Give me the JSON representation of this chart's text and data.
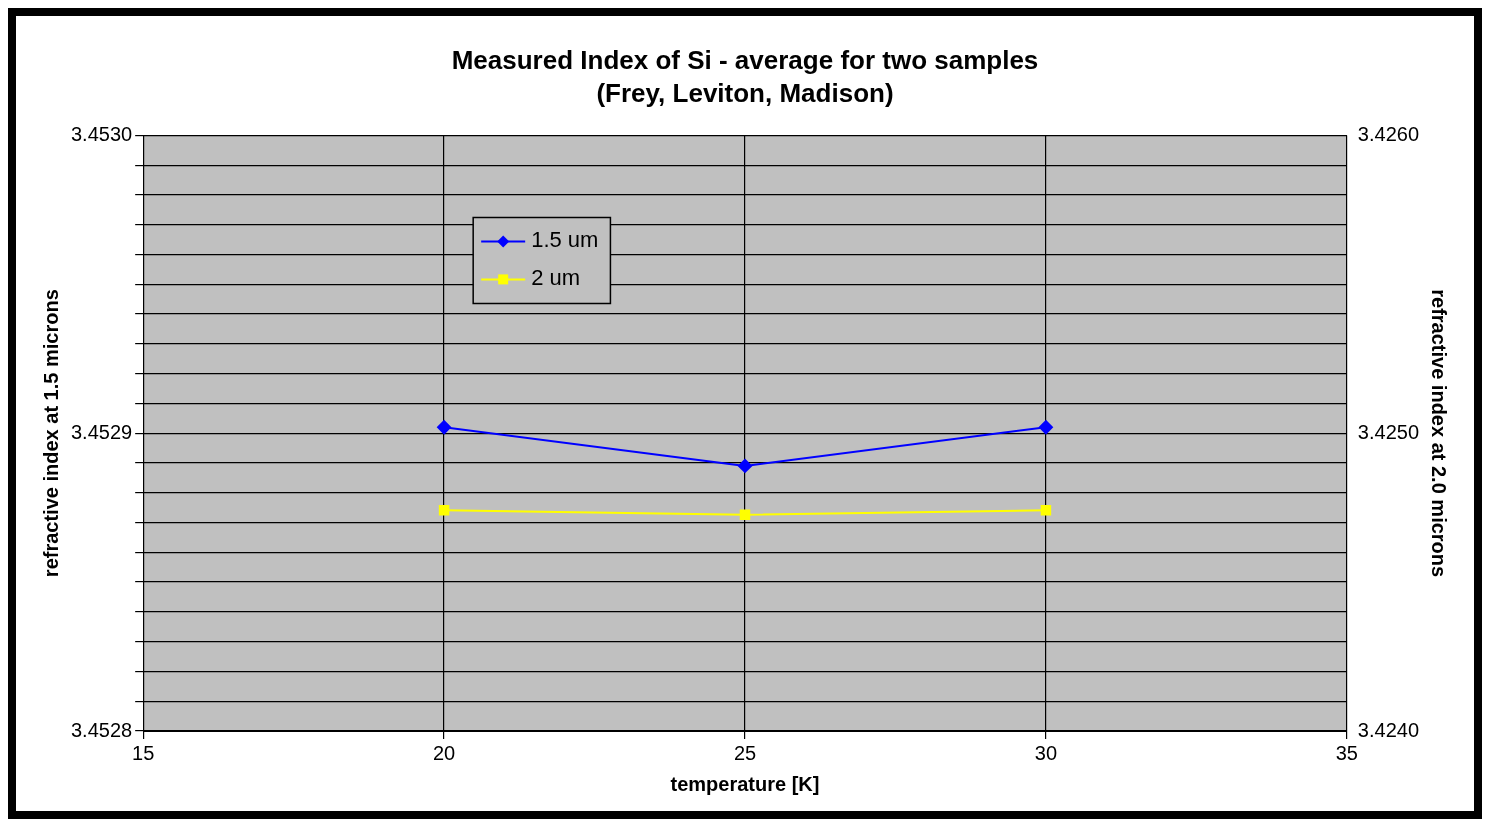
{
  "chart_data": {
    "type": "line",
    "title": "Measured Index of Si - average for two samples",
    "subtitle": "(Frey, Leviton, Madison)",
    "xlabel": "temperature [K]",
    "ylabel": "refractive index at 1.5 microns",
    "y2label": "refractive index at 2.0 microns",
    "x": [
      20,
      25,
      30
    ],
    "series": [
      {
        "name": "1.5 um",
        "color": "#0000ff",
        "marker": "diamond",
        "values": [
          3.452902,
          3.452889,
          3.452902
        ]
      },
      {
        "name": "2 um",
        "color": "#ffff00",
        "marker": "square",
        "axis": "y2",
        "values": [
          3.424741,
          3.424726,
          3.424741
        ]
      }
    ],
    "xlim": [
      15,
      35
    ],
    "xticks": [
      15,
      20,
      25,
      30,
      35
    ],
    "ylim": [
      3.4528,
      3.453
    ],
    "yticks": [
      {
        "value": 3.4528,
        "label": "3.4528"
      },
      {
        "value": 3.45281,
        "label": null
      },
      {
        "value": 3.45282,
        "label": null
      },
      {
        "value": 3.45283,
        "label": null
      },
      {
        "value": 3.45284,
        "label": null
      },
      {
        "value": 3.45285,
        "label": null
      },
      {
        "value": 3.45286,
        "label": null
      },
      {
        "value": 3.45287,
        "label": null
      },
      {
        "value": 3.45288,
        "label": null
      },
      {
        "value": 3.45289,
        "label": null
      },
      {
        "value": 3.4529,
        "label": "3.4529"
      },
      {
        "value": 3.45291,
        "label": null
      },
      {
        "value": 3.45292,
        "label": null
      },
      {
        "value": 3.45293,
        "label": null
      },
      {
        "value": 3.45294,
        "label": null
      },
      {
        "value": 3.45295,
        "label": null
      },
      {
        "value": 3.45296,
        "label": null
      },
      {
        "value": 3.45297,
        "label": null
      },
      {
        "value": 3.45298,
        "label": null
      },
      {
        "value": 3.45299,
        "label": null
      },
      {
        "value": 3.453,
        "label": "3.4530"
      }
    ],
    "y2lim": [
      3.424,
      3.426
    ],
    "y2ticks": [
      {
        "value": 3.424,
        "label": "3.4240"
      },
      {
        "value": 3.425,
        "label": "3.4250"
      },
      {
        "value": 3.426,
        "label": "3.4260"
      }
    ],
    "grid": true,
    "legend": "top left",
    "line_style": "solid"
  }
}
